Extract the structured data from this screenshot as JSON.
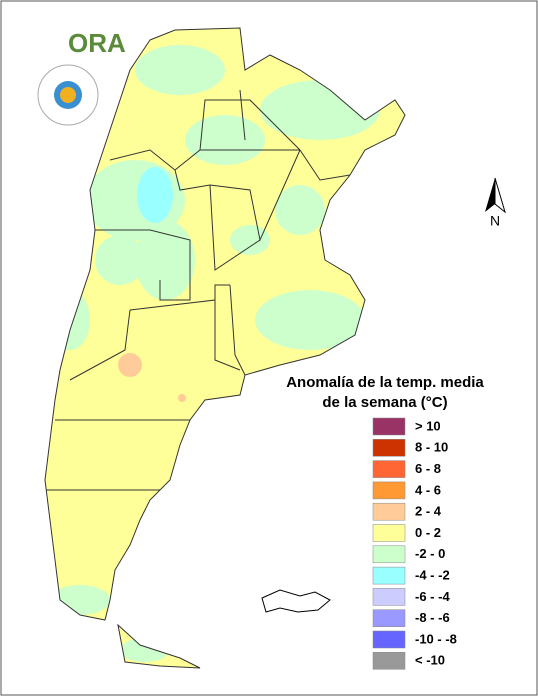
{
  "logo": {
    "text": "ORA"
  },
  "north_arrow": {
    "label": "N"
  },
  "legend": {
    "title": [
      "Anomalía de la temp. media",
      "de la semana (°C)"
    ],
    "items": [
      {
        "label": "> 10",
        "color": "#993366"
      },
      {
        "label": "8 - 10",
        "color": "#cc3300"
      },
      {
        "label": "6 - 8",
        "color": "#ff6633"
      },
      {
        "label": "4 - 6",
        "color": "#ff9933"
      },
      {
        "label": "2 - 4",
        "color": "#ffcc99"
      },
      {
        "label": "0 - 2",
        "color": "#ffff99"
      },
      {
        "label": "-2 - 0",
        "color": "#ccffcc"
      },
      {
        "label": "-4 - -2",
        "color": "#99ffff"
      },
      {
        "label": "-6 - -4",
        "color": "#ccccff"
      },
      {
        "label": "-8 - -6",
        "color": "#9999ff"
      },
      {
        "label": "-10 - -8",
        "color": "#6666ff"
      },
      {
        "label": "< -10",
        "color": "#999999"
      }
    ]
  }
}
